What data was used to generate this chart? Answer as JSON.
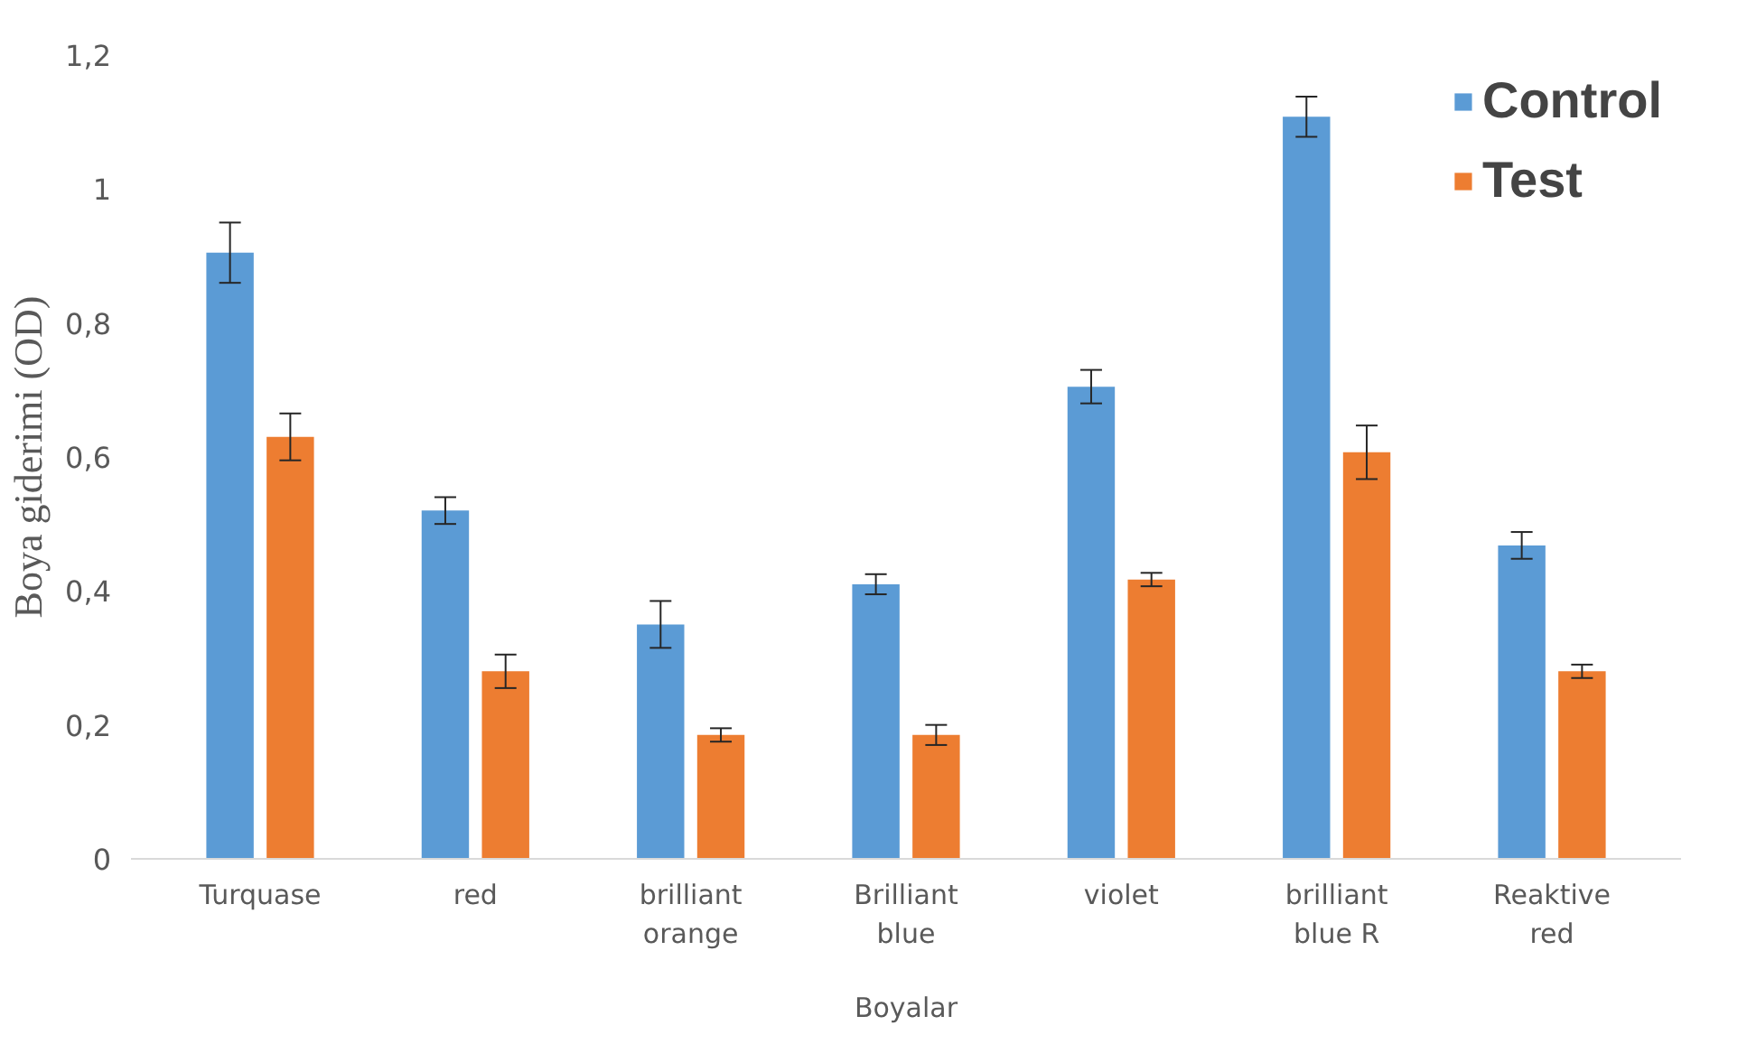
{
  "chart_data": {
    "type": "bar",
    "ylabel": "Boya giderimi (OD)",
    "xlabel": "Boyalar",
    "categories": [
      "Turquase",
      "red",
      "brilliant orange",
      "Brilliant blue",
      "violet",
      "brilliant blue R",
      "Reaktive red"
    ],
    "series": [
      {
        "name": "Control",
        "color": "#5b9bd5",
        "values": [
          0.905,
          0.52,
          0.35,
          0.41,
          0.705,
          1.108,
          0.468
        ],
        "errors": [
          0.045,
          0.02,
          0.035,
          0.015,
          0.025,
          0.03,
          0.02
        ]
      },
      {
        "name": "Test",
        "color": "#ed7d31",
        "values": [
          0.63,
          0.28,
          0.185,
          0.185,
          0.417,
          0.607,
          0.28
        ],
        "errors": [
          0.035,
          0.025,
          0.01,
          0.015,
          0.01,
          0.04,
          0.01
        ]
      }
    ],
    "ylim": [
      0,
      1.2
    ],
    "yticks": [
      {
        "value": 0,
        "label": "0"
      },
      {
        "value": 0.2,
        "label": "0,2"
      },
      {
        "value": 0.4,
        "label": "0,4"
      },
      {
        "value": 0.6,
        "label": "0,6"
      },
      {
        "value": 0.8,
        "label": "0,8"
      },
      {
        "value": 1,
        "label": "1"
      },
      {
        "value": 1.2,
        "label": "1,2"
      }
    ],
    "grid": false,
    "legend": "top right"
  }
}
